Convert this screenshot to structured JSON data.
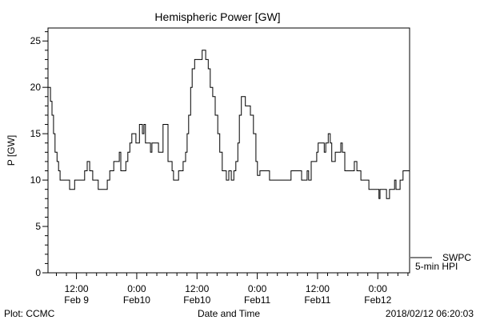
{
  "chart_data": {
    "type": "line",
    "title": "Hemispheric Power [GW]",
    "xlabel": "Date and Time",
    "ylabel": "P [GW]",
    "x_units": "hours since Feb 9 06:20",
    "xlim": [
      0,
      72
    ],
    "ylim": [
      0,
      26.4
    ],
    "y_major_ticks": [
      0,
      5,
      10,
      15,
      20,
      25
    ],
    "x_major_ticks": [
      {
        "x": 5.67,
        "time": "12:00",
        "date": "Feb 9"
      },
      {
        "x": 17.67,
        "time": "0:00",
        "date": "Feb10"
      },
      {
        "x": 29.67,
        "time": "12:00",
        "date": "Feb10"
      },
      {
        "x": 41.67,
        "time": "0:00",
        "date": "Feb11"
      },
      {
        "x": 53.67,
        "time": "12:00",
        "date": "Feb11"
      },
      {
        "x": 65.67,
        "time": "0:00",
        "date": "Feb12"
      }
    ],
    "legend": {
      "position": "bottom-right",
      "line1": "SWPC",
      "line2": "5-min HPI"
    },
    "series": [
      {
        "name": "SWPC 5-min HPI",
        "step": true,
        "x": [
          0,
          0.5,
          0.8,
          1.1,
          1.4,
          1.8,
          2.1,
          2.4,
          4.3,
          5.3,
          7.3,
          7.8,
          8.3,
          8.9,
          10.0,
          11.8,
          12.3,
          13.1,
          14.2,
          14.5,
          15.5,
          15.9,
          16.3,
          16.7,
          17.5,
          18.2,
          18.8,
          19.1,
          19.4,
          20.4,
          20.7,
          22.0,
          22.9,
          23.9,
          24.7,
          25.0,
          26.0,
          26.9,
          27.4,
          27.7,
          28.0,
          28.4,
          28.7,
          29.2,
          30.7,
          31.4,
          31.9,
          32.3,
          32.8,
          33.3,
          33.8,
          34.2,
          34.7,
          35.5,
          36.0,
          36.5,
          37.0,
          37.4,
          37.8,
          38.1,
          38.5,
          39.3,
          40.3,
          40.9,
          41.4,
          41.7,
          42.2,
          44.1,
          48.4,
          50.5,
          51.6,
          51.9,
          52.4,
          53.5,
          53.8,
          55.0,
          55.3,
          55.8,
          56.2,
          56.5,
          57.2,
          58.3,
          58.6,
          59.1,
          61.0,
          61.5,
          62.3,
          63.9,
          65.9,
          66.1,
          67.4,
          68.0,
          69.0,
          69.3,
          70.1,
          70.7,
          72
        ],
        "y": [
          20,
          18.5,
          17,
          15,
          13,
          12,
          11,
          10,
          9,
          10,
          11,
          12,
          11,
          10,
          9,
          10,
          11,
          12,
          13,
          11,
          12,
          13,
          14,
          15,
          14,
          16,
          15,
          16,
          14,
          13,
          14,
          13,
          16,
          12,
          11,
          10,
          11,
          12,
          13,
          15,
          17,
          20,
          22,
          23,
          24,
          23,
          22,
          20,
          19,
          17,
          15,
          13,
          11,
          10,
          11,
          10,
          11,
          12,
          14,
          17,
          19,
          18,
          17,
          15,
          12,
          10.5,
          11,
          10,
          11,
          10,
          11,
          10,
          12,
          13,
          14,
          13,
          14,
          15,
          14,
          12,
          13,
          14,
          13,
          11,
          12,
          11,
          10,
          9,
          8,
          9,
          8,
          9,
          10,
          9,
          10,
          11,
          11
        ]
      }
    ]
  },
  "footer": {
    "left": "Plot: CCMC",
    "center": "Date and Time",
    "right": "2018/02/12 06:20:03"
  }
}
